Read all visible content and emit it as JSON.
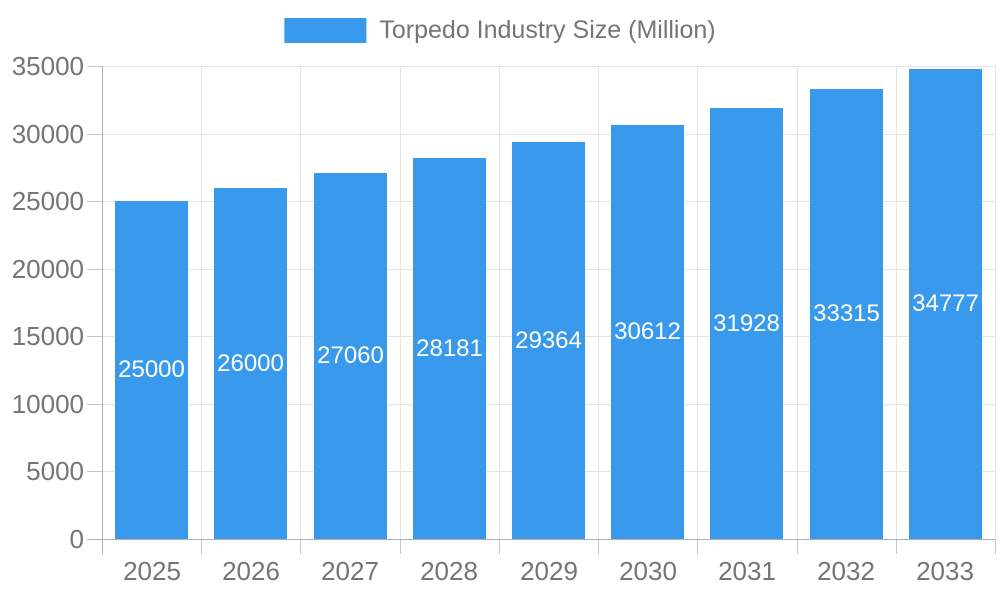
{
  "legend": {
    "label": "Torpedo Industry Size (Million)"
  },
  "chart_data": {
    "type": "bar",
    "title": "Torpedo Industry Size (Million)",
    "categories": [
      "2025",
      "2026",
      "2027",
      "2028",
      "2029",
      "2030",
      "2031",
      "2032",
      "2033"
    ],
    "values": [
      25000,
      26000,
      27060,
      28181,
      29364,
      30612,
      31928,
      33315,
      34777
    ],
    "value_labels": [
      "25000",
      "26000",
      "27060",
      "28181",
      "29364",
      "30612",
      "31928",
      "33315",
      "34777"
    ],
    "xlabel": "",
    "ylabel": "",
    "ylim": [
      0,
      35000
    ],
    "ytick_step": 5000,
    "yticks": [
      0,
      5000,
      10000,
      15000,
      20000,
      25000,
      30000,
      35000
    ],
    "grid": true,
    "legend_position": "top"
  },
  "colors": {
    "bar": "#3999EC",
    "bar_value_text": "#FFFFFF",
    "axis_text": "#757575",
    "grid_line": "#E5E5E5",
    "axis_line": "#B0B0B0",
    "tick_mark": "#C4C4C4",
    "background": "#FFFFFF"
  }
}
